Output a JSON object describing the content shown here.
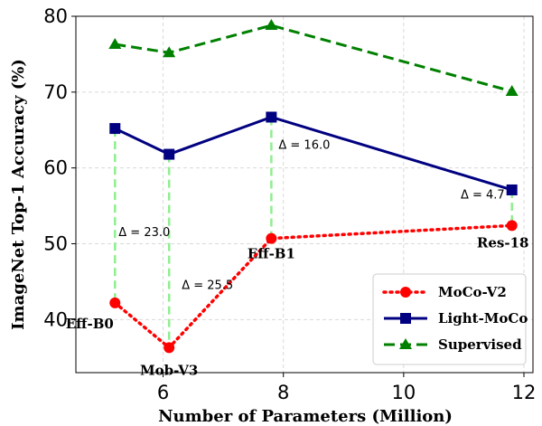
{
  "chart_data": {
    "type": "line",
    "xlabel": "Number of Parameters (Million)",
    "ylabel": "ImageNet Top-1 Accuracy (%)",
    "xlim": [
      4.55,
      12.15
    ],
    "ylim": [
      33,
      80
    ],
    "xticks": [
      6,
      8,
      10,
      12
    ],
    "yticks": [
      40,
      50,
      60,
      70,
      80
    ],
    "grid": true,
    "legend_position": "bottom-right",
    "x": [
      5.2,
      6.1,
      7.8,
      11.8
    ],
    "series": [
      {
        "name": "MoCo-V2",
        "values": [
          42.2,
          36.3,
          50.7,
          52.4
        ],
        "color": "#ff0000",
        "linestyle": "dotted",
        "marker": "circle"
      },
      {
        "name": "Light-MoCo",
        "values": [
          65.2,
          61.8,
          66.7,
          57.1
        ],
        "color": "#000080",
        "linestyle": "solid",
        "marker": "square"
      },
      {
        "name": "Supervised",
        "values": [
          76.3,
          75.2,
          78.8,
          70.1
        ],
        "color": "#008000",
        "linestyle": "dashed",
        "marker": "triangle"
      }
    ],
    "point_labels": [
      "Eff-B0",
      "Mob-V3",
      "Eff-B1",
      "Res-18"
    ],
    "deltas": [
      "Δ = 23.0",
      "Δ = 25.5",
      "Δ = 16.0",
      "Δ = 4.7"
    ],
    "delta_color": "#90ee90"
  }
}
